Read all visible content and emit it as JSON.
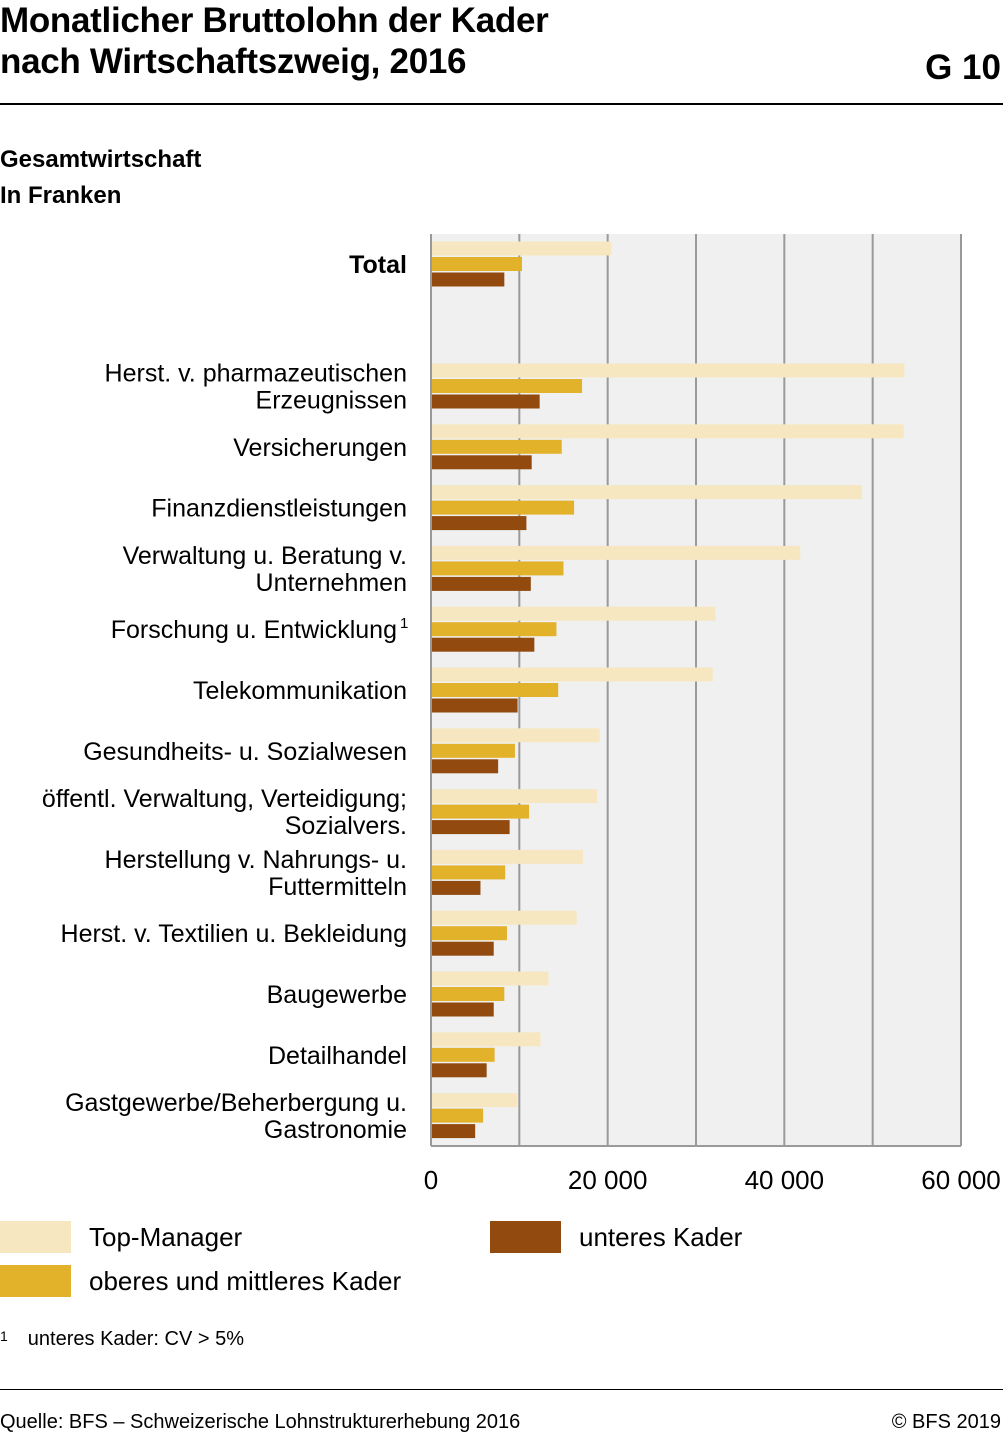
{
  "header": {
    "title_line1": "Monatlicher Bruttolohn der Kader",
    "title_line2": "nach Wirtschaftszweig, 2016",
    "chart_id": "G 10",
    "subtitle_line1": "Gesamtwirtschaft",
    "subtitle_line2": "In Franken"
  },
  "chart_data": {
    "type": "bar",
    "orientation": "horizontal",
    "xlim": [
      0,
      60000
    ],
    "x_ticks": [
      0,
      20000,
      40000,
      60000
    ],
    "x_tick_labels": [
      "0",
      "20 000",
      "40 000",
      "60 000"
    ],
    "grid": true,
    "legend_placement": "bottom",
    "categories": [
      {
        "lines": [
          "Total"
        ],
        "bold": true
      },
      {
        "lines": [
          "Herst. v. pharmazeutischen",
          "Erzeugnissen"
        ]
      },
      {
        "lines": [
          "Versicherungen"
        ]
      },
      {
        "lines": [
          "Finanzdienstleistungen"
        ]
      },
      {
        "lines": [
          "Verwaltung u. Beratung v.",
          "Unternehmen"
        ]
      },
      {
        "lines": [
          "Forschung u. Entwicklung"
        ],
        "sup": "1"
      },
      {
        "lines": [
          "Telekommunikation"
        ]
      },
      {
        "lines": [
          "Gesundheits- u. Sozialwesen"
        ]
      },
      {
        "lines": [
          "öffentl. Verwaltung, Verteidigung;",
          "Sozialvers."
        ]
      },
      {
        "lines": [
          "Herstellung v. Nahrungs- u.",
          "Futtermitteln"
        ]
      },
      {
        "lines": [
          "Herst. v. Textilien u. Bekleidung"
        ]
      },
      {
        "lines": [
          "Baugewerbe"
        ]
      },
      {
        "lines": [
          "Detailhandel"
        ]
      },
      {
        "lines": [
          "Gastgewerbe/Beherbergung u.",
          "Gastronomie"
        ]
      }
    ],
    "series": [
      {
        "name": "Top-Manager",
        "color": "#f6e7c1",
        "values": [
          20400,
          53600,
          53500,
          48800,
          41800,
          32200,
          31900,
          19100,
          18800,
          17200,
          16500,
          13300,
          12400,
          9800
        ]
      },
      {
        "name": "oberes und mittleres Kader",
        "color": "#e3b22b",
        "values": [
          10300,
          17100,
          14800,
          16200,
          15000,
          14200,
          14400,
          9500,
          11100,
          8400,
          8600,
          8300,
          7200,
          5900
        ]
      },
      {
        "name": "unteres Kader",
        "color": "#924a0f",
        "values": [
          8300,
          12300,
          11400,
          10800,
          11300,
          11700,
          9800,
          7600,
          8900,
          5600,
          7100,
          7100,
          6300,
          5000
        ]
      }
    ]
  },
  "legend": {
    "top_manager": "Top-Manager",
    "oberes_mittleres": "oberes und mittleres Kader",
    "unteres": "unteres Kader"
  },
  "footnote": {
    "marker": "1",
    "text": "unteres Kader: CV > 5%"
  },
  "footer": {
    "source": "Quelle: BFS – Schweizerische Lohnstrukturerhebung 2016",
    "copyright": "© BFS 2019"
  }
}
